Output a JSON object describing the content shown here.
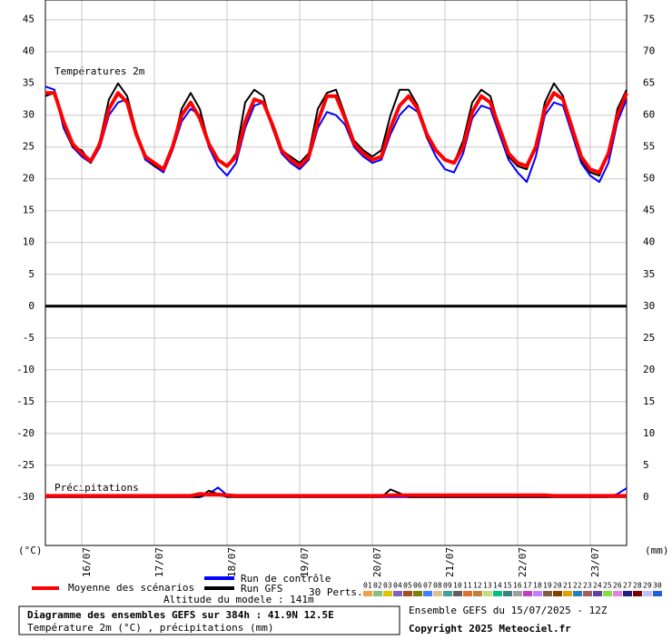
{
  "chart_data": {
    "type": "line",
    "temperature_label": "Températures 2m",
    "precip_label": "Précipitations",
    "y_unit": "(°C)",
    "y2_unit": "(mm)",
    "title": "Diagramme des ensembles GEFS sur 384h : 41.9N 12.5E",
    "subtitle": "Température 2m (°C) , précipitations (mm)",
    "altitude": "Altitude du modele : 141m",
    "run_info": "Ensemble GEFS du 15/07/2025 - 12Z",
    "copyright": "Copyright 2025 Meteociel.fr",
    "grid": true,
    "xlim": [
      0,
      8
    ],
    "xticks": [
      {
        "value": 0.5,
        "label": "16/07"
      },
      {
        "value": 1.5,
        "label": "17/07"
      },
      {
        "value": 2.5,
        "label": "18/07"
      },
      {
        "value": 3.5,
        "label": "19/07"
      },
      {
        "value": 4.5,
        "label": "20/07"
      },
      {
        "value": 5.5,
        "label": "21/07"
      },
      {
        "value": 6.5,
        "label": "22/07"
      },
      {
        "value": 7.5,
        "label": "23/07"
      }
    ],
    "ylim": [
      -37.6,
      48.1
    ],
    "yticks": [
      45,
      40,
      35,
      30,
      25,
      20,
      15,
      10,
      5,
      0,
      -5,
      -10,
      -15,
      -20,
      -25,
      -30
    ],
    "y2lim": [
      -7.6,
      78.1
    ],
    "y2ticks": [
      75,
      70,
      65,
      60,
      55,
      50,
      45,
      40,
      35,
      30,
      25,
      20,
      15,
      10,
      5,
      0
    ],
    "x": [
      0,
      0.125,
      0.25,
      0.375,
      0.5,
      0.625,
      0.75,
      0.875,
      1,
      1.125,
      1.25,
      1.375,
      1.5,
      1.625,
      1.75,
      1.875,
      2,
      2.125,
      2.25,
      2.375,
      2.5,
      2.625,
      2.75,
      2.875,
      3,
      3.125,
      3.25,
      3.375,
      3.5,
      3.625,
      3.75,
      3.875,
      4,
      4.125,
      4.25,
      4.375,
      4.5,
      4.625,
      4.75,
      4.875,
      5,
      5.125,
      5.25,
      5.375,
      5.5,
      5.625,
      5.75,
      5.875,
      6,
      6.125,
      6.25,
      6.375,
      6.5,
      6.625,
      6.75,
      6.875,
      7,
      7.125,
      7.25,
      7.375,
      7.5,
      7.625,
      7.75,
      7.875,
      8
    ],
    "series": [
      {
        "name": "Run de contrôle",
        "color": "#0000ff",
        "width": 2,
        "values": [
          34.5,
          34,
          28,
          25,
          23.5,
          22.5,
          25,
          30,
          32,
          32.5,
          27,
          23,
          22,
          21,
          24.5,
          29,
          31,
          30,
          25,
          22,
          20.5,
          22.5,
          28,
          31.5,
          32,
          28,
          24,
          22.5,
          21.5,
          23,
          28,
          30.5,
          30,
          28.5,
          25,
          23.5,
          22.5,
          23,
          27,
          30,
          31.5,
          30.5,
          26.5,
          23.5,
          21.5,
          21,
          24,
          29.5,
          31.5,
          31,
          27,
          23,
          21,
          19.5,
          23.5,
          30,
          32,
          31.5,
          27,
          22.5,
          20.5,
          19.5,
          22.5,
          29,
          32.5
        ],
        "precip": [
          0,
          0,
          0,
          0,
          0,
          0,
          0,
          0,
          0,
          0,
          0,
          0,
          0,
          0,
          0,
          0,
          0,
          0,
          0.5,
          1.5,
          0.3,
          0,
          0,
          0,
          0,
          0,
          0,
          0,
          0,
          0,
          0,
          0,
          0,
          0,
          0,
          0,
          0,
          0,
          0,
          0,
          0,
          0,
          0,
          0,
          0,
          0,
          0,
          0,
          0,
          0,
          0,
          0,
          0,
          0,
          0,
          0,
          0,
          0,
          0,
          0,
          0,
          0,
          0,
          0.5,
          1.4
        ]
      },
      {
        "name": "Run GFS",
        "color": "#000000",
        "width": 2,
        "values": [
          33,
          33.5,
          28.5,
          25,
          24.5,
          22.5,
          26,
          32.5,
          35,
          33,
          27.5,
          23.5,
          22,
          21.5,
          25,
          31,
          33.5,
          31,
          25.5,
          23,
          22,
          24,
          32,
          34,
          33,
          28,
          24.5,
          23.5,
          22.5,
          24,
          31,
          33.5,
          34,
          30,
          26,
          24.5,
          23.5,
          24.5,
          30,
          34,
          34,
          31.5,
          26.5,
          24.5,
          23,
          22.5,
          26,
          32,
          34,
          33,
          28,
          23.5,
          22,
          21.5,
          25,
          32,
          35,
          33,
          28,
          23,
          21,
          20.5,
          24,
          31,
          34
        ],
        "precip": [
          0,
          0,
          0,
          0,
          0,
          0,
          0,
          0,
          0,
          0,
          0,
          0,
          0,
          0,
          0,
          0,
          0,
          0,
          1,
          0.5,
          0,
          0,
          0,
          0,
          0,
          0,
          0,
          0,
          0,
          0,
          0,
          0,
          0,
          0,
          0,
          0,
          0,
          0,
          1.2,
          0.6,
          0,
          0,
          0,
          0,
          0,
          0,
          0,
          0,
          0,
          0,
          0,
          0,
          0,
          0,
          0,
          0,
          0,
          0,
          0,
          0,
          0,
          0,
          0,
          0,
          0
        ]
      },
      {
        "name": "Moyenne des scénarios",
        "color": "#ff0000",
        "width": 4,
        "values": [
          33.5,
          33.5,
          29,
          25.5,
          24,
          22.8,
          25.5,
          31,
          33.5,
          32,
          27,
          23.5,
          22.5,
          21.5,
          25,
          30,
          32,
          29.5,
          25.5,
          23,
          22,
          23.5,
          29,
          32.5,
          32,
          28.5,
          24.5,
          23,
          22,
          23.5,
          29,
          33,
          33,
          29.5,
          25.5,
          24,
          23,
          23.5,
          28,
          31.5,
          33,
          31,
          27,
          24.5,
          23,
          22.5,
          25,
          30.5,
          33,
          32,
          28,
          24,
          22.5,
          22,
          25,
          31,
          33.5,
          32.5,
          28,
          23.5,
          21.5,
          21,
          24,
          30,
          33.5
        ],
        "precip": [
          0.2,
          0.2,
          0.2,
          0.2,
          0.2,
          0.2,
          0.2,
          0.2,
          0.2,
          0.2,
          0.2,
          0.2,
          0.2,
          0.2,
          0.2,
          0.2,
          0.2,
          0.5,
          0.4,
          0.4,
          0.3,
          0.2,
          0.2,
          0.2,
          0.2,
          0.2,
          0.2,
          0.2,
          0.2,
          0.2,
          0.2,
          0.2,
          0.2,
          0.2,
          0.2,
          0.2,
          0.2,
          0.2,
          0.3,
          0.3,
          0.3,
          0.3,
          0.3,
          0.3,
          0.3,
          0.3,
          0.3,
          0.3,
          0.3,
          0.3,
          0.3,
          0.3,
          0.3,
          0.3,
          0.3,
          0.3,
          0.2,
          0.2,
          0.2,
          0.2,
          0.2,
          0.2,
          0.2,
          0.2,
          0.2
        ]
      }
    ],
    "perturbations": {
      "label": "30 Perts.",
      "members": [
        {
          "name": "01",
          "color": "#f0a040"
        },
        {
          "name": "02",
          "color": "#80c080"
        },
        {
          "name": "03",
          "color": "#e0c000"
        },
        {
          "name": "04",
          "color": "#8060c0"
        },
        {
          "name": "05",
          "color": "#a05020"
        },
        {
          "name": "06",
          "color": "#808000"
        },
        {
          "name": "07",
          "color": "#4080ff"
        },
        {
          "name": "08",
          "color": "#e0c090"
        },
        {
          "name": "09",
          "color": "#40a0a0"
        },
        {
          "name": "10",
          "color": "#606060"
        },
        {
          "name": "11",
          "color": "#e07030"
        },
        {
          "name": "12",
          "color": "#c08040"
        },
        {
          "name": "13",
          "color": "#c0e080"
        },
        {
          "name": "14",
          "color": "#00c080"
        },
        {
          "name": "15",
          "color": "#408080"
        },
        {
          "name": "16",
          "color": "#a0a0a0"
        },
        {
          "name": "17",
          "color": "#c040c0"
        },
        {
          "name": "18",
          "color": "#c080ff"
        },
        {
          "name": "19",
          "color": "#806040"
        },
        {
          "name": "20",
          "color": "#804000"
        },
        {
          "name": "21",
          "color": "#e0a000"
        },
        {
          "name": "22",
          "color": "#2080c0"
        },
        {
          "name": "23",
          "color": "#a06060"
        },
        {
          "name": "24",
          "color": "#6040a0"
        },
        {
          "name": "25",
          "color": "#80e040"
        },
        {
          "name": "26",
          "color": "#e080e0"
        },
        {
          "name": "27",
          "color": "#202080"
        },
        {
          "name": "28",
          "color": "#800000"
        },
        {
          "name": "29",
          "color": "#c0c0ff"
        },
        {
          "name": "30",
          "color": "#2060e0"
        }
      ]
    }
  }
}
